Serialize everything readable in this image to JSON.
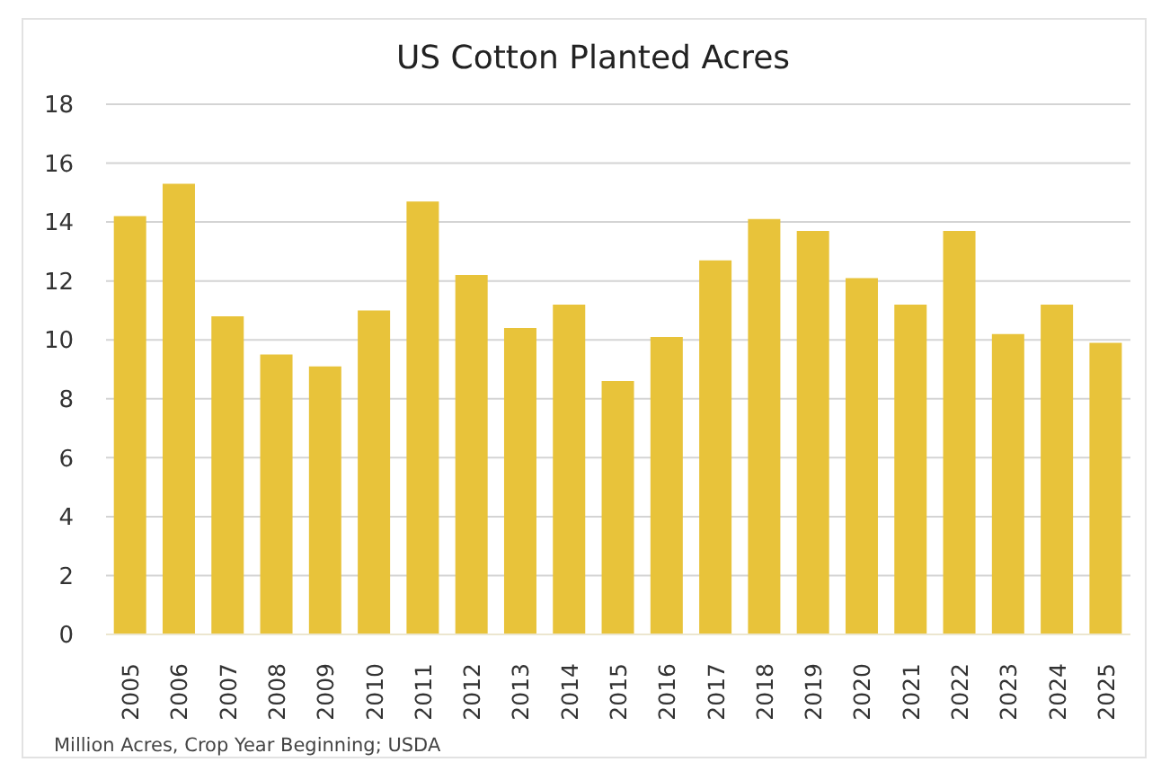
{
  "chart_data": {
    "type": "bar",
    "title": "US Cotton Planted Acres",
    "categories": [
      "2005",
      "2006",
      "2007",
      "2008",
      "2009",
      "2010",
      "2011",
      "2012",
      "2013",
      "2014",
      "2015",
      "2016",
      "2017",
      "2018",
      "2019",
      "2020",
      "2021",
      "2022",
      "2023",
      "2024",
      "2025"
    ],
    "values": [
      14.2,
      15.3,
      10.8,
      9.5,
      9.1,
      11.0,
      14.7,
      12.2,
      10.4,
      11.2,
      8.6,
      10.1,
      12.7,
      14.1,
      13.7,
      12.1,
      11.2,
      13.7,
      10.2,
      11.2,
      9.9
    ],
    "color": "#e8c33a",
    "ylim": [
      0,
      18
    ],
    "yticks": [
      0,
      2,
      4,
      6,
      8,
      10,
      12,
      14,
      16,
      18
    ],
    "grid": "y",
    "annotations": [
      "Million Acres, Crop Year Beginning; USDA"
    ]
  }
}
